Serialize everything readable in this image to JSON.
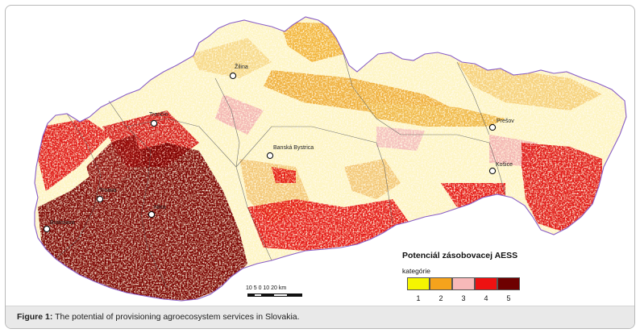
{
  "figure": {
    "caption_label": "Figure 1:",
    "caption_text": " The potential of provisioning agroecosystem services in Slovakia."
  },
  "legend": {
    "title": "Potenciál zásobovacej AESS",
    "subtitle": "kategórie",
    "categories": [
      {
        "label": "1",
        "color": "#f5f500"
      },
      {
        "label": "2",
        "color": "#f5a31c"
      },
      {
        "label": "3",
        "color": "#f7b9b9"
      },
      {
        "label": "4",
        "color": "#ee1111"
      },
      {
        "label": "5",
        "color": "#6e0000"
      }
    ]
  },
  "scale": {
    "labels": "10 5  0      10   20 km"
  },
  "cities": [
    {
      "name": "Žilina"
    },
    {
      "name": "Trenčín"
    },
    {
      "name": "Prešov"
    },
    {
      "name": "Banská Bystrica"
    },
    {
      "name": "Košice"
    },
    {
      "name": "Trnava"
    },
    {
      "name": "Nitra"
    },
    {
      "name": "Bratislava"
    }
  ]
}
